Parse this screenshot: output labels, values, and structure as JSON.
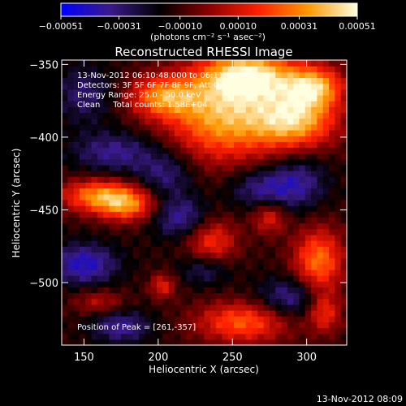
{
  "chart_data": {
    "type": "heatmap",
    "title": "Reconstructed RHESSI Image",
    "xlabel": "Heliocentric X (arcsec)",
    "ylabel": "Heliocentric Y (arcsec)",
    "xlim": [
      135,
      327
    ],
    "ylim": [
      -543,
      -347
    ],
    "x_ticks": [
      {
        "value": 150,
        "label": "150"
      },
      {
        "value": 200,
        "label": "200"
      },
      {
        "value": 250,
        "label": "250"
      },
      {
        "value": 300,
        "label": "300"
      }
    ],
    "y_ticks": [
      {
        "value": -350,
        "label": "−350"
      },
      {
        "value": -400,
        "label": "−400"
      },
      {
        "value": -450,
        "label": "−450"
      },
      {
        "value": -500,
        "label": "−500"
      }
    ],
    "colorbar": {
      "range": [
        -0.00051,
        0.00051
      ],
      "ticks": [
        {
          "value": -0.00051,
          "label": "−0.00051"
        },
        {
          "value": -0.00031,
          "label": "−0.00031"
        },
        {
          "value": -0.0001,
          "label": "−0.00010"
        },
        {
          "value": 0.0001,
          "label": "0.00010"
        },
        {
          "value": 0.00031,
          "label": "0.00031"
        },
        {
          "value": 0.00051,
          "label": "0.00051"
        }
      ],
      "units_label": "(photons cm⁻² s⁻¹ asec⁻²)",
      "colors": [
        "#0000ff",
        "#3a1a8a",
        "#000000",
        "#8b0000",
        "#ff2000",
        "#ff9800",
        "#ffffe0"
      ]
    },
    "annotations": [
      "13-Nov-2012 06:10:48.000 to 06:11:00.000",
      "Detectors: 3F 5F 6F 7F 8F 9F, Att 0",
      "Energy Range: 25.0 - 50.0 keV",
      "Clean     Total counts: 1.58E+04"
    ],
    "peak_label": "Position of Peak = [261,-357]",
    "peak": {
      "x": 261,
      "y": -357
    },
    "blobs": [
      {
        "x": 262,
        "y": -357,
        "sx": 22,
        "sy": 12,
        "a": 0.00052
      },
      {
        "x": 243,
        "y": -385,
        "sx": 26,
        "sy": 22,
        "a": 0.00048
      },
      {
        "x": 292,
        "y": -388,
        "sx": 20,
        "sy": 14,
        "a": 0.0005
      },
      {
        "x": 305,
        "y": -365,
        "sx": 14,
        "sy": 10,
        "a": 0.00045
      },
      {
        "x": 203,
        "y": -372,
        "sx": 16,
        "sy": 10,
        "a": 0.00038
      },
      {
        "x": 160,
        "y": -440,
        "sx": 18,
        "sy": 8,
        "a": 0.00042
      },
      {
        "x": 180,
        "y": -447,
        "sx": 14,
        "sy": 8,
        "a": 0.00035
      },
      {
        "x": 236,
        "y": -472,
        "sx": 12,
        "sy": 12,
        "a": 0.0003
      },
      {
        "x": 275,
        "y": -455,
        "sx": 8,
        "sy": 8,
        "a": 0.00025
      },
      {
        "x": 308,
        "y": -485,
        "sx": 12,
        "sy": 16,
        "a": 0.0004
      },
      {
        "x": 257,
        "y": -527,
        "sx": 22,
        "sy": 10,
        "a": 0.00036
      },
      {
        "x": 203,
        "y": -502,
        "sx": 6,
        "sy": 6,
        "a": 0.00025
      },
      {
        "x": 312,
        "y": -520,
        "sx": 8,
        "sy": 10,
        "a": 0.00028
      },
      {
        "x": 160,
        "y": -513,
        "sx": 12,
        "sy": 6,
        "a": 0.00018
      },
      {
        "x": 150,
        "y": -370,
        "sx": 14,
        "sy": 14,
        "a": -0.00018
      },
      {
        "x": 170,
        "y": -410,
        "sx": 20,
        "sy": 10,
        "a": -0.00022
      },
      {
        "x": 205,
        "y": -425,
        "sx": 14,
        "sy": 12,
        "a": -0.0002
      },
      {
        "x": 215,
        "y": -455,
        "sx": 14,
        "sy": 10,
        "a": -0.00025
      },
      {
        "x": 270,
        "y": -435,
        "sx": 16,
        "sy": 10,
        "a": -0.00022
      },
      {
        "x": 295,
        "y": -430,
        "sx": 14,
        "sy": 14,
        "a": -0.0002
      },
      {
        "x": 232,
        "y": -490,
        "sx": 12,
        "sy": 8,
        "a": -0.0002
      },
      {
        "x": 290,
        "y": -510,
        "sx": 16,
        "sy": 10,
        "a": -0.00025
      },
      {
        "x": 150,
        "y": -487,
        "sx": 16,
        "sy": 10,
        "a": -0.0003
      },
      {
        "x": 175,
        "y": -530,
        "sx": 14,
        "sy": 8,
        "a": -0.00024
      }
    ],
    "background": -0.00012,
    "grid": false
  },
  "footer": {
    "timestamp": "13-Nov-2012 08:09"
  }
}
